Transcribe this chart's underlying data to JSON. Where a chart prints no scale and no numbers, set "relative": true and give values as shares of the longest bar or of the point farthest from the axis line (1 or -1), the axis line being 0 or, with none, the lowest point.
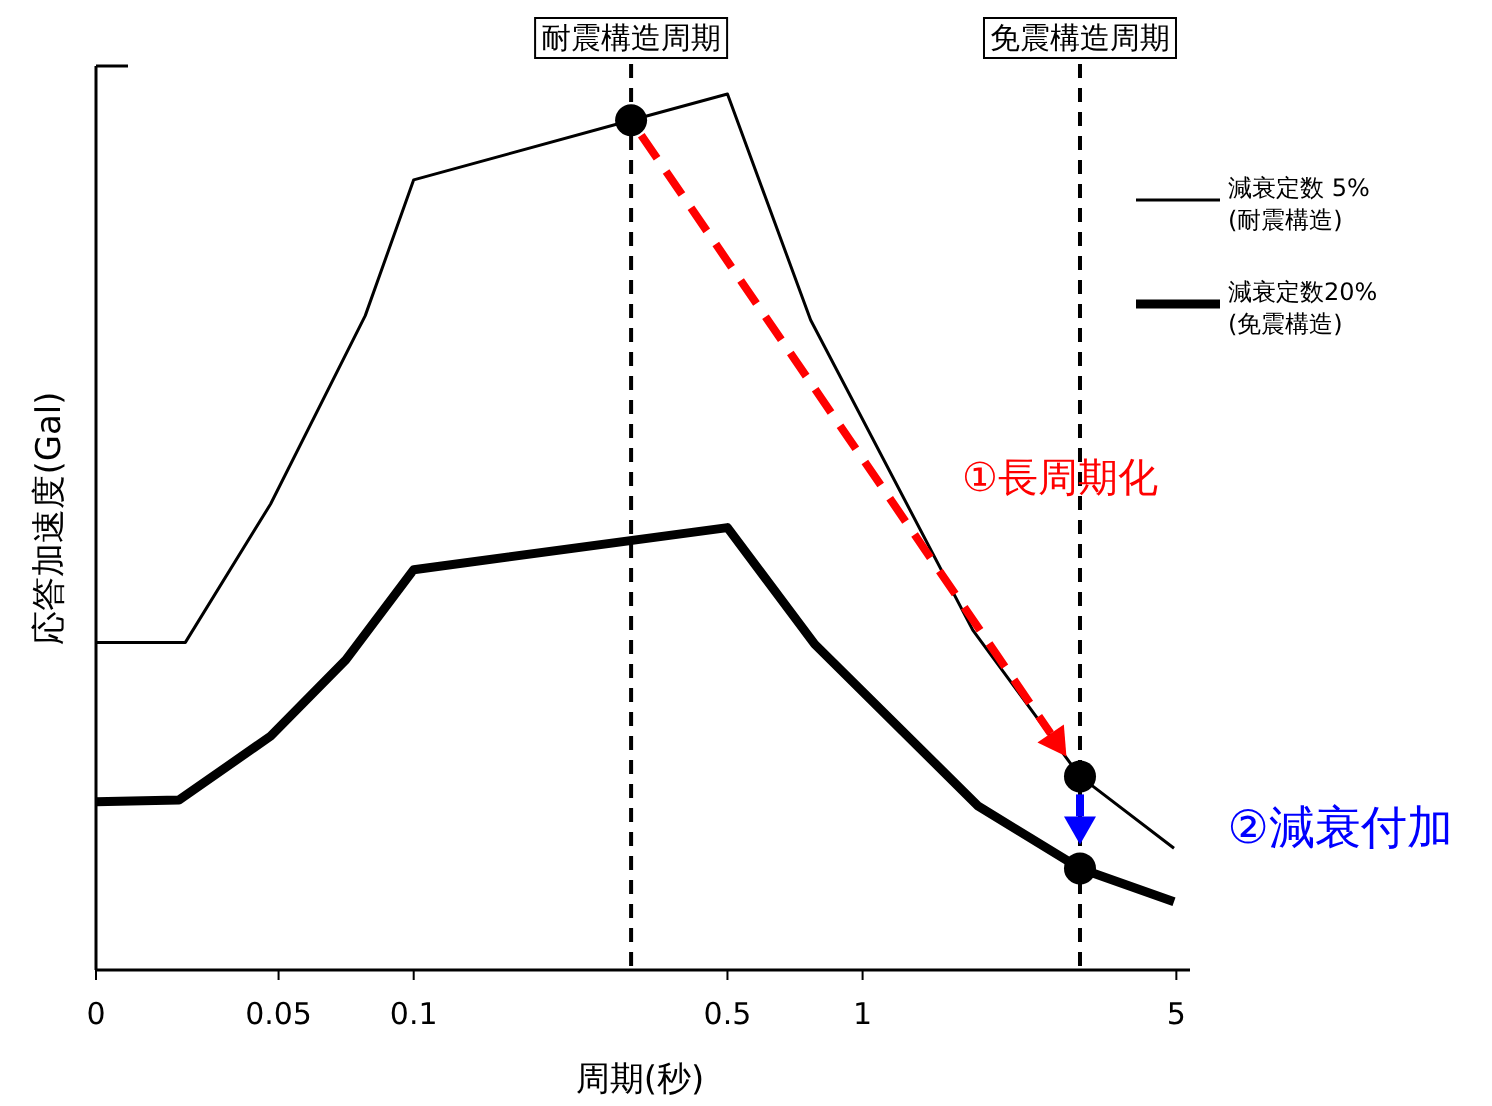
{
  "chart_data": {
    "type": "line",
    "relative": true,
    "log": "x",
    "xlabel": "周期(秒)",
    "ylabel": "応答加速度(Gal)",
    "xlim": [
      0.0196,
      5.2
    ],
    "xticks": [
      {
        "value": 0.0196,
        "label": "0"
      },
      0.05,
      0.1,
      0.5,
      1,
      5
    ],
    "legend": "right",
    "series": [
      {
        "name": "減衰定数 5%\n(耐震構造)",
        "color": "#000000",
        "x": [
          0.0196,
          0.031,
          0.048,
          0.078,
          0.1,
          0.305,
          0.5,
          0.766,
          1.76,
          3.05,
          4.94
        ],
        "values": [
          0.374,
          0.374,
          0.532,
          0.747,
          0.902,
          0.97,
          1.0,
          0.742,
          0.388,
          0.221,
          0.139
        ]
      },
      {
        "name": "減衰定数20%\n(免震構造)",
        "color": "#000000",
        "x": [
          0.0196,
          0.03,
          0.048,
          0.0706,
          0.1,
          0.5,
          0.782,
          1.81,
          3.05,
          4.94
        ],
        "values": [
          0.192,
          0.194,
          0.267,
          0.354,
          0.457,
          0.505,
          0.372,
          0.187,
          0.116,
          0.078
        ]
      },
      {
        "type": "scatter",
        "color": "#000000",
        "marker": "circle",
        "x": [
          0.305,
          3.05,
          3.05
        ],
        "values": [
          0.97,
          0.221,
          0.116
        ]
      }
    ],
    "ref_lines": [
      {
        "axis": "x",
        "value": 0.305,
        "label": "耐震構造周期",
        "line_style": "dashed",
        "color": "#000000"
      },
      {
        "axis": "x",
        "value": 3.05,
        "label": "免震構造周期",
        "line_style": "dashed",
        "color": "#000000"
      }
    ],
    "annotations": [
      "①長周期化",
      "②減衰付加"
    ]
  }
}
